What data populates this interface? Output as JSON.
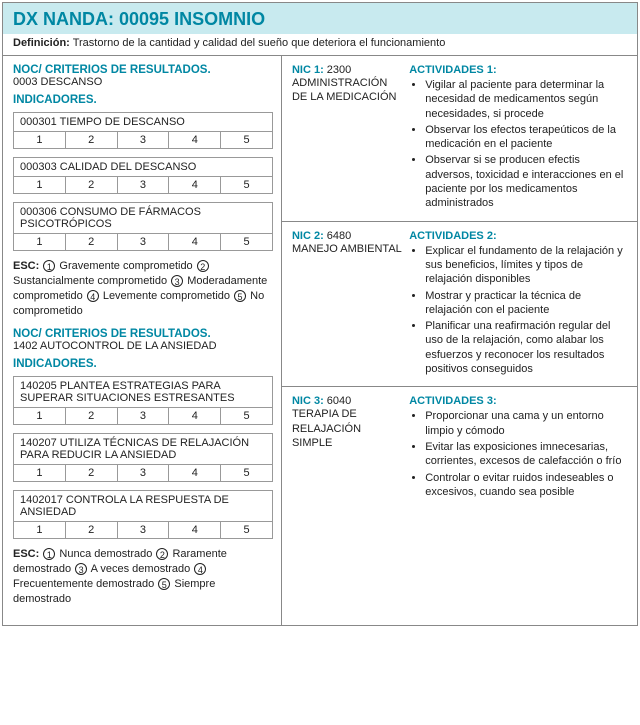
{
  "header": {
    "dx_label": "DX NANDA:",
    "dx_code": "00095 INSOMNIO",
    "def_label": "Definición:",
    "def_text": "Trastorno de la cantidad y calidad del sueño que deteriora el funcionamiento"
  },
  "left": {
    "noc1": {
      "title": "NOC/ CRITERIOS DE RESULTADOS.",
      "code": "0003 DESCANSO",
      "indic_label": "INDICADORES.",
      "indicators": [
        {
          "label": "000301 TIEMPO DE DESCANSO"
        },
        {
          "label": "000303 CALIDAD DEL DESCANSO"
        },
        {
          "label": "000306 CONSUMO DE FÁRMACOS PSICOTRÓPICOS"
        }
      ],
      "esc_label": "ESC:",
      "esc_items": [
        "Gravemente comprometido",
        "Sustancialmente comprometido",
        "Moderadamente comprometido",
        "Levemente comprometido",
        "No comprometido"
      ]
    },
    "noc2": {
      "title": "NOC/ CRITERIOS DE RESULTADOS.",
      "code": "1402 AUTOCONTROL DE LA ANSIEDAD",
      "indic_label": "INDICADORES.",
      "indicators": [
        {
          "label": "140205 PLANTEA ESTRATEGIAS PARA SUPERAR SITUACIONES ESTRESANTES"
        },
        {
          "label": "140207 UTILIZA TÉCNICAS DE RELAJACIÓN PARA REDUCIR LA ANSIEDAD"
        },
        {
          "label": "1402017 CONTROLA LA RESPUESTA DE ANSIEDAD"
        }
      ],
      "esc_label": "ESC:",
      "esc_items": [
        "Nunca demostrado",
        "Raramente demostrado",
        "A veces demostrado",
        "Frecuentemente demostrado",
        "Siempre demostrado"
      ]
    },
    "scale": [
      "1",
      "2",
      "3",
      "4",
      "5"
    ]
  },
  "right": {
    "rows": [
      {
        "nic_label": "NIC 1:",
        "nic_code": "2300",
        "nic_desc": "ADMINISTRACIÓN DE LA MEDICACIÓN",
        "act_label": "ACTIVIDADES 1:",
        "activities": [
          "Vigilar al paciente para determinar la necesidad de medicamentos según necesidades, si procede",
          "Observar los efectos terapeúticos de la medicación en el paciente",
          "Observar si se producen efectis adversos, toxicidad e interacciones en el paciente por los medicamentos administrados"
        ]
      },
      {
        "nic_label": "NIC 2:",
        "nic_code": "6480",
        "nic_desc": "MANEJO AMBIENTAL",
        "act_label": "ACTIVIDADES 2:",
        "activities": [
          "Explicar el fundamento de la relajación y sus beneficios, límites y tipos de relajación disponibles",
          "Mostrar y practicar la técnica de relajación con el paciente",
          "Planificar una reafirmación regular del uso de la relajación, como alabar los esfuerzos y reconocer los resultados positivos conseguidos"
        ]
      },
      {
        "nic_label": "NIC 3:",
        "nic_code": "6040",
        "nic_desc": "TERAPIA DE RELAJACIÓN SIMPLE",
        "act_label": "ACTIVIDADES 3:",
        "activities": [
          "Proporcionar una cama y un entorno limpio y cómodo",
          "Evitar las exposiciones imnecesarias, corrientes, excesos de calefacción o frío",
          "Controlar o evitar ruidos indeseables o excesivos, cuando sea posible"
        ]
      }
    ]
  }
}
